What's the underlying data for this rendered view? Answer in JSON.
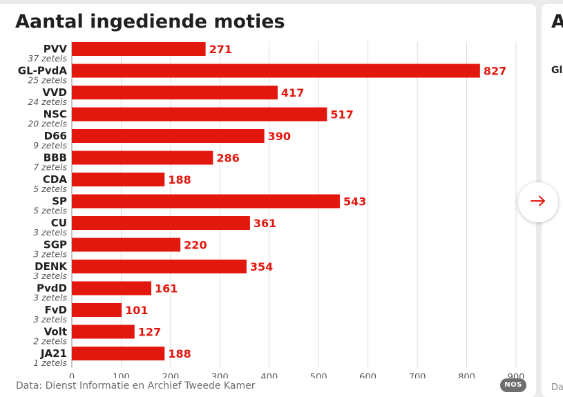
{
  "chart": {
    "title": "Aantal ingediende moties",
    "source": "Data: Dienst Informatie en Archief Tweede Kamer",
    "logo": "NOS"
  },
  "next_card": {
    "title_fragment": "A",
    "label_fragment": "Gl",
    "source_fragment": "Da"
  },
  "colors": {
    "bar": "#e2180f",
    "value_label": "#e2180f",
    "text": "#202020",
    "subtext": "#555555",
    "grid": "#dddddd",
    "background": "#ebebeb"
  },
  "icons": {
    "next": "arrow-right-icon"
  },
  "chart_data": {
    "type": "bar",
    "orientation": "horizontal",
    "title": "Aantal ingediende moties",
    "categories": [
      "PVV",
      "GL-PvdA",
      "VVD",
      "NSC",
      "D66",
      "BBB",
      "CDA",
      "SP",
      "CU",
      "SGP",
      "DENK",
      "PvdD",
      "FvD",
      "Volt",
      "JA21"
    ],
    "subtitles": [
      "37 zetels",
      "25 zetels",
      "24 zetels",
      "20 zetels",
      "9 zetels",
      "7 zetels",
      "5 zetels",
      "5 zetels",
      "3 zetels",
      "3 zetels",
      "3 zetels",
      "3 zetels",
      "3 zetels",
      "2 zetels",
      "1 zetels"
    ],
    "values": [
      271,
      827,
      417,
      517,
      390,
      286,
      188,
      543,
      361,
      220,
      354,
      161,
      101,
      127,
      188
    ],
    "xlim": [
      0,
      900
    ],
    "xticks": [
      0,
      100,
      200,
      300,
      400,
      500,
      600,
      700,
      800,
      900
    ],
    "grid": true,
    "data_labels": true
  }
}
